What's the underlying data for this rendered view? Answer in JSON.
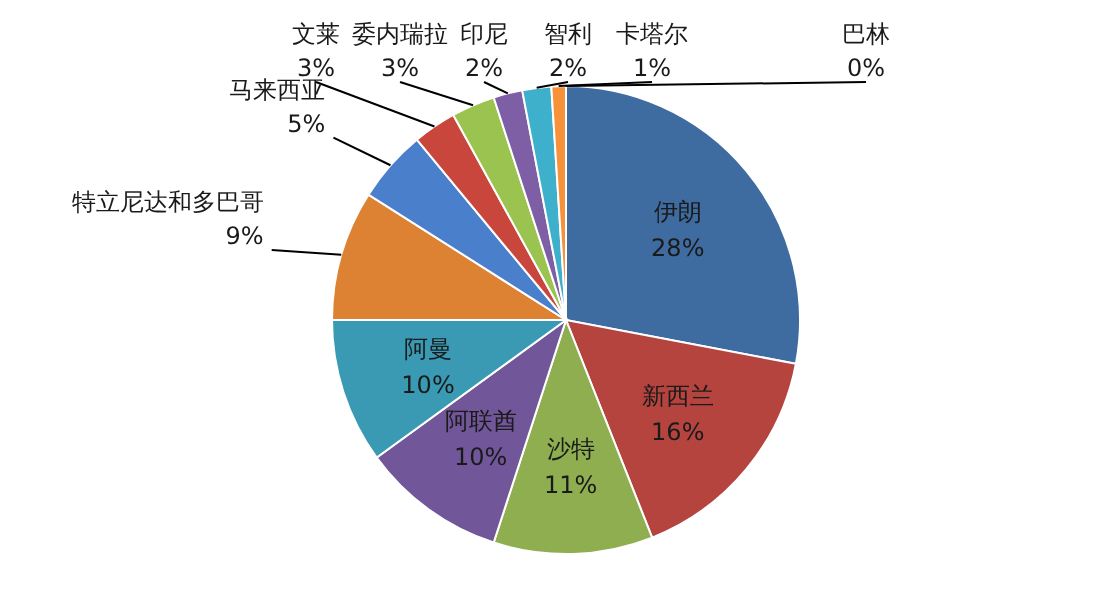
{
  "chart_data": {
    "type": "pie",
    "categories": [
      "伊朗",
      "新西兰",
      "沙特",
      "阿联酋",
      "阿曼",
      "特立尼达和多巴哥",
      "马来西亚",
      "文莱",
      "委内瑞拉",
      "印尼",
      "智利",
      "卡塔尔",
      "巴林"
    ],
    "values": [
      28,
      16,
      11,
      10,
      10,
      9,
      5,
      3,
      3,
      2,
      2,
      1,
      0
    ],
    "value_labels": [
      "28%",
      "16%",
      "11%",
      "10%",
      "10%",
      "9%",
      "5%",
      "3%",
      "3%",
      "2%",
      "2%",
      "1%",
      "0%"
    ],
    "colors": [
      "#3e6ba0",
      "#b5443f",
      "#8eae50",
      "#72569a",
      "#3a9ab4",
      "#dd8233",
      "#4a7fcc",
      "#c9463d",
      "#9bc34f",
      "#7e5fa6",
      "#3fb0cc",
      "#f7923a",
      "#a8c0e0"
    ],
    "legend": false
  }
}
